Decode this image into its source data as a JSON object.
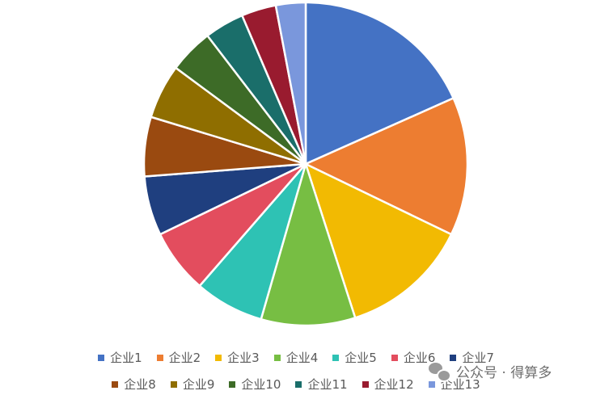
{
  "chart_data": {
    "type": "pie",
    "categories": [
      "企业1",
      "企业2",
      "企业3",
      "企业4",
      "企业5",
      "企业6",
      "企业7",
      "企业8",
      "企业9",
      "企业10",
      "企业11",
      "企业12",
      "企业13"
    ],
    "values": [
      18.5,
      14.0,
      13.0,
      9.5,
      7.0,
      6.5,
      6.0,
      6.0,
      5.5,
      4.5,
      4.0,
      3.5,
      3.0
    ],
    "colors": [
      "#4472C4",
      "#ED7D31",
      "#F2BA02",
      "#77BE43",
      "#2EC2B4",
      "#E34D5E",
      "#1F3F7F",
      "#9A4A10",
      "#8F6E00",
      "#3D6B27",
      "#1A6E6A",
      "#991B2F",
      "#7A97DC"
    ],
    "legend_position": "bottom",
    "start_angle_deg": 0,
    "direction": "clockwise"
  },
  "legend": {
    "row1": [
      "企业1",
      "企业2",
      "企业3",
      "企业4",
      "企业5",
      "企业6",
      "企业7"
    ],
    "row2": [
      "企业8",
      "企业9",
      "企业10",
      "企业11",
      "企业12",
      "企业13"
    ]
  },
  "watermark": {
    "icon": "wechat-icon",
    "text": "公众号 · 得算多"
  }
}
